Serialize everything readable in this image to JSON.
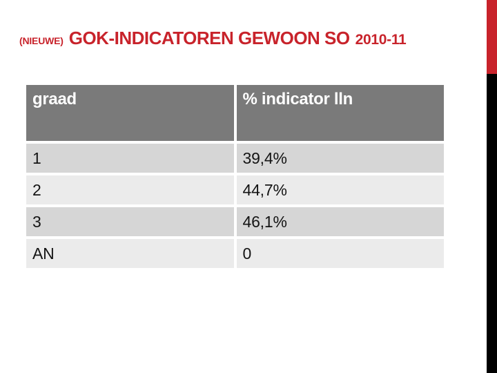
{
  "slide": {
    "title": {
      "prefix": "(NIEUWE)",
      "main": "GOK-INDICATOREN GEWOON SO",
      "suffix": "2010-11"
    },
    "table": {
      "columns": [
        "graad",
        "% indicator lln"
      ],
      "rows": [
        {
          "graad": "1",
          "value": "39,4%"
        },
        {
          "graad": "2",
          "value": "44,7%"
        },
        {
          "graad": "3",
          "value": "46,1%"
        },
        {
          "graad": "AN",
          "value": "0"
        }
      ]
    },
    "colors": {
      "title_red": "#C8232B",
      "bar_red": "#C8232B",
      "bar_black": "#000000",
      "header_bg": "#7A7A7A",
      "row_odd": "#D6D6D6",
      "row_even": "#EBEBEB"
    }
  }
}
